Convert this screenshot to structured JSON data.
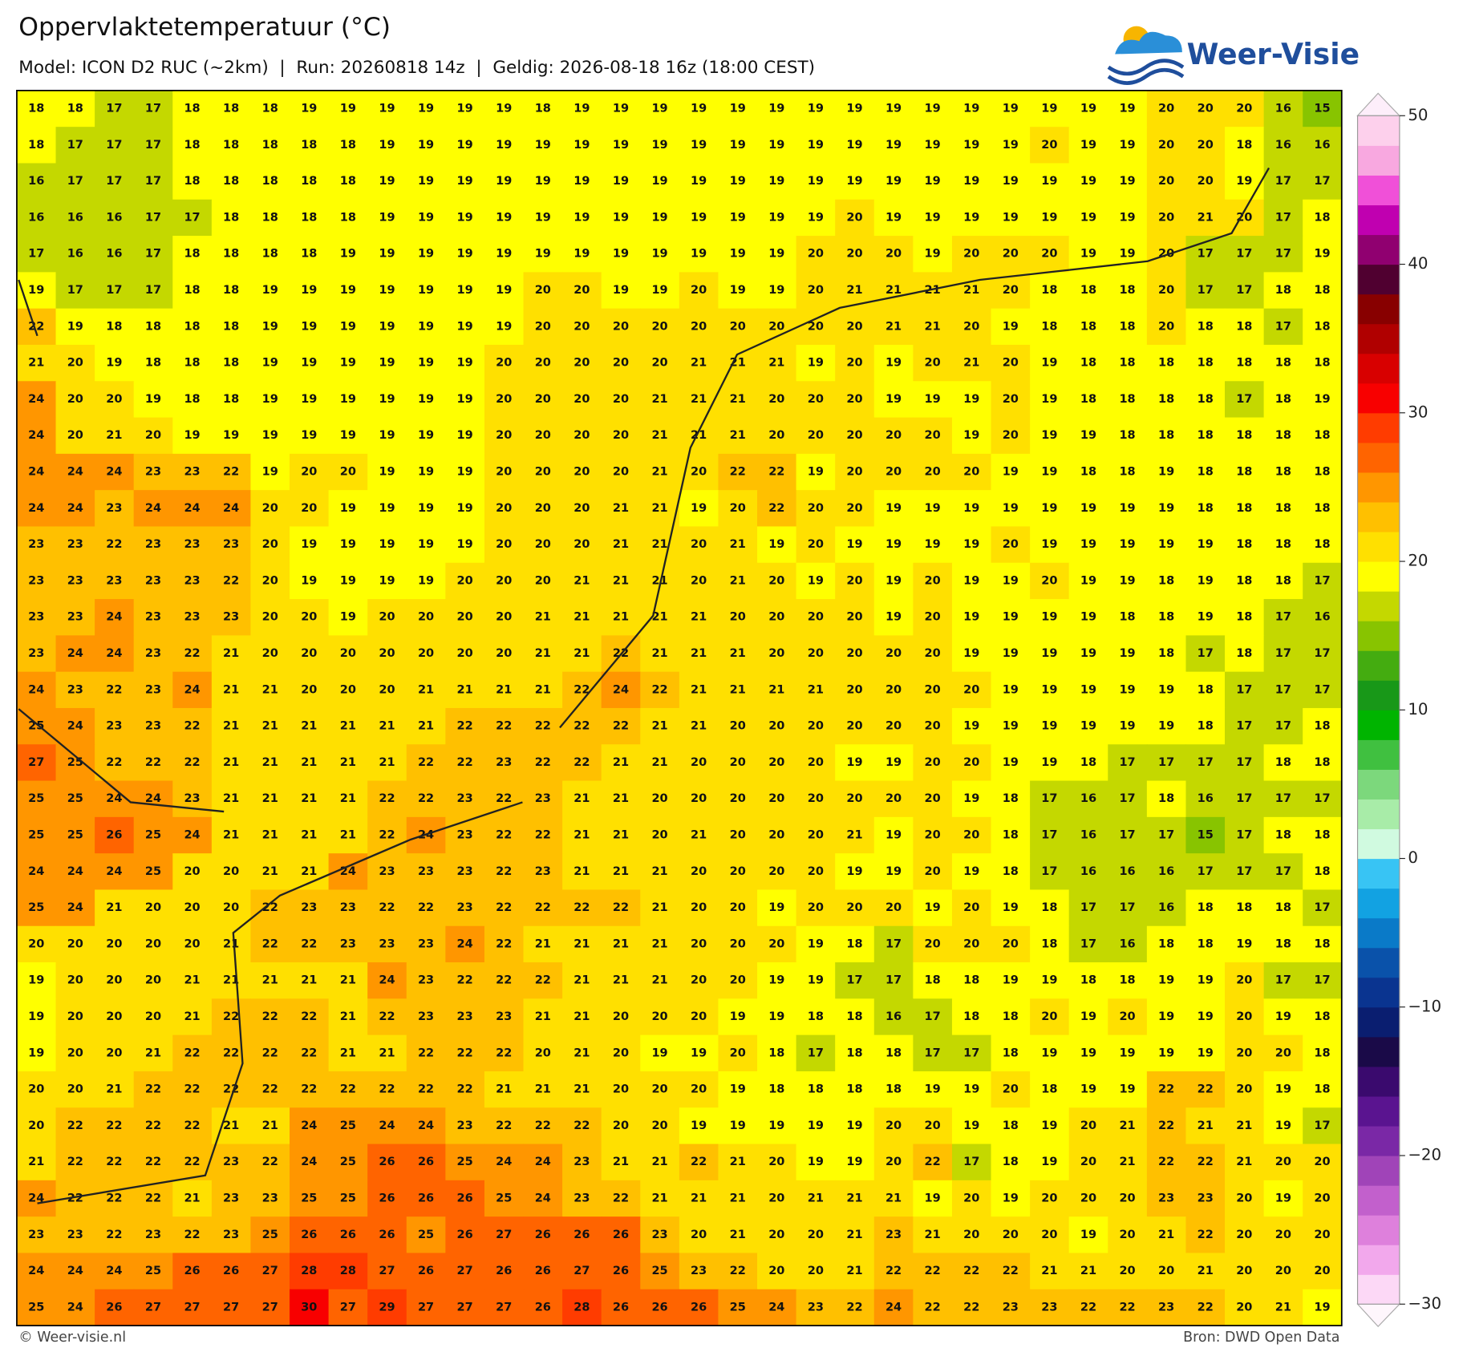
{
  "header": {
    "title": "Oppervlaktetemperatuur (°C)",
    "subtitle": "Model: ICON D2 RUC (~2km)  |  Run: 20260818 14z  |  Geldig: 2026-08-18 16z (18:00 CEST)"
  },
  "logo": "Weer-Visie",
  "map": {
    "grid": [
      [
        18,
        18,
        17,
        17,
        18,
        18,
        18,
        19,
        19,
        19,
        19,
        19,
        19,
        18,
        19,
        19,
        19,
        19,
        19,
        19,
        19,
        19,
        19,
        19,
        19,
        19,
        19,
        19,
        19,
        20,
        20,
        20,
        16,
        15
      ],
      [
        18,
        17,
        17,
        17,
        18,
        18,
        18,
        18,
        18,
        19,
        19,
        19,
        19,
        19,
        19,
        19,
        19,
        19,
        19,
        19,
        19,
        19,
        19,
        19,
        19,
        19,
        20,
        19,
        19,
        20,
        20,
        18,
        16,
        16
      ],
      [
        16,
        17,
        17,
        17,
        18,
        18,
        18,
        18,
        18,
        19,
        19,
        19,
        19,
        19,
        19,
        19,
        19,
        19,
        19,
        19,
        19,
        19,
        19,
        19,
        19,
        19,
        19,
        19,
        19,
        20,
        20,
        19,
        17,
        17
      ],
      [
        16,
        16,
        16,
        17,
        17,
        18,
        18,
        18,
        18,
        19,
        19,
        19,
        19,
        19,
        19,
        19,
        19,
        19,
        19,
        19,
        19,
        20,
        19,
        19,
        19,
        19,
        19,
        19,
        19,
        20,
        21,
        20,
        17,
        18
      ],
      [
        17,
        16,
        16,
        17,
        18,
        18,
        18,
        18,
        19,
        19,
        19,
        19,
        19,
        19,
        19,
        19,
        19,
        19,
        19,
        19,
        20,
        20,
        20,
        19,
        20,
        20,
        20,
        19,
        19,
        20,
        17,
        17,
        17,
        19
      ],
      [
        19,
        17,
        17,
        17,
        18,
        18,
        19,
        19,
        19,
        19,
        19,
        19,
        19,
        20,
        20,
        19,
        19,
        20,
        19,
        19,
        20,
        21,
        21,
        21,
        21,
        20,
        18,
        18,
        18,
        20,
        17,
        17,
        18,
        18
      ],
      [
        22,
        19,
        18,
        18,
        18,
        18,
        19,
        19,
        19,
        19,
        19,
        19,
        19,
        20,
        20,
        20,
        20,
        20,
        20,
        20,
        20,
        20,
        21,
        21,
        20,
        19,
        18,
        18,
        18,
        20,
        18,
        18,
        17,
        18
      ],
      [
        21,
        20,
        19,
        18,
        18,
        18,
        19,
        19,
        19,
        19,
        19,
        19,
        20,
        20,
        20,
        20,
        20,
        21,
        21,
        21,
        19,
        20,
        19,
        20,
        21,
        20,
        19,
        18,
        18,
        18,
        18,
        18,
        18,
        18
      ],
      [
        24,
        20,
        20,
        19,
        18,
        18,
        19,
        19,
        19,
        19,
        19,
        19,
        20,
        20,
        20,
        20,
        21,
        21,
        21,
        20,
        20,
        20,
        19,
        19,
        19,
        20,
        19,
        18,
        18,
        18,
        18,
        17,
        18,
        19
      ],
      [
        24,
        20,
        21,
        20,
        19,
        19,
        19,
        19,
        19,
        19,
        19,
        19,
        20,
        20,
        20,
        20,
        21,
        21,
        21,
        20,
        20,
        20,
        20,
        20,
        19,
        20,
        19,
        19,
        18,
        18,
        18,
        18,
        18,
        18
      ],
      [
        24,
        24,
        24,
        23,
        23,
        22,
        19,
        20,
        20,
        19,
        19,
        19,
        20,
        20,
        20,
        20,
        21,
        20,
        22,
        22,
        19,
        20,
        20,
        20,
        20,
        19,
        19,
        18,
        18,
        19,
        18,
        18,
        18,
        18
      ],
      [
        24,
        24,
        23,
        24,
        24,
        24,
        20,
        20,
        19,
        19,
        19,
        19,
        20,
        20,
        20,
        21,
        21,
        19,
        20,
        22,
        20,
        20,
        19,
        19,
        19,
        19,
        19,
        19,
        19,
        19,
        18,
        18,
        18,
        18
      ],
      [
        23,
        23,
        22,
        23,
        23,
        23,
        20,
        19,
        19,
        19,
        19,
        19,
        20,
        20,
        20,
        21,
        21,
        20,
        21,
        19,
        20,
        19,
        19,
        19,
        19,
        20,
        19,
        19,
        19,
        19,
        19,
        18,
        18,
        18
      ],
      [
        23,
        23,
        23,
        23,
        23,
        22,
        20,
        19,
        19,
        19,
        19,
        20,
        20,
        20,
        21,
        21,
        21,
        20,
        21,
        20,
        19,
        20,
        19,
        20,
        19,
        19,
        20,
        19,
        19,
        18,
        19,
        18,
        18,
        17
      ],
      [
        23,
        23,
        24,
        23,
        23,
        23,
        20,
        20,
        19,
        20,
        20,
        20,
        20,
        21,
        21,
        21,
        21,
        21,
        20,
        20,
        20,
        20,
        19,
        20,
        19,
        19,
        19,
        19,
        18,
        18,
        19,
        18,
        17,
        16
      ],
      [
        23,
        24,
        24,
        23,
        22,
        21,
        20,
        20,
        20,
        20,
        20,
        20,
        20,
        21,
        21,
        22,
        21,
        21,
        21,
        20,
        20,
        20,
        20,
        20,
        19,
        19,
        19,
        19,
        19,
        18,
        17,
        18,
        17,
        17
      ],
      [
        24,
        23,
        22,
        23,
        24,
        21,
        21,
        20,
        20,
        20,
        21,
        21,
        21,
        21,
        22,
        24,
        22,
        21,
        21,
        21,
        21,
        20,
        20,
        20,
        20,
        19,
        19,
        19,
        19,
        19,
        18,
        17,
        17,
        17
      ],
      [
        25,
        24,
        23,
        23,
        22,
        21,
        21,
        21,
        21,
        21,
        21,
        22,
        22,
        22,
        22,
        22,
        21,
        21,
        20,
        20,
        20,
        20,
        20,
        20,
        19,
        19,
        19,
        19,
        19,
        19,
        18,
        17,
        17,
        18
      ],
      [
        27,
        25,
        22,
        22,
        22,
        21,
        21,
        21,
        21,
        21,
        22,
        22,
        23,
        22,
        22,
        21,
        21,
        20,
        20,
        20,
        20,
        19,
        19,
        20,
        20,
        19,
        19,
        18,
        17,
        17,
        17,
        17,
        18,
        18
      ],
      [
        25,
        25,
        24,
        24,
        23,
        21,
        21,
        21,
        21,
        22,
        22,
        23,
        22,
        23,
        21,
        21,
        20,
        20,
        20,
        20,
        20,
        20,
        20,
        20,
        19,
        18,
        17,
        16,
        17,
        18,
        16,
        17,
        17,
        17
      ],
      [
        25,
        25,
        26,
        25,
        24,
        21,
        21,
        21,
        21,
        22,
        24,
        23,
        22,
        22,
        21,
        21,
        20,
        21,
        20,
        20,
        20,
        21,
        19,
        20,
        20,
        18,
        17,
        16,
        17,
        17,
        15,
        17,
        18,
        18
      ],
      [
        24,
        24,
        24,
        25,
        20,
        20,
        21,
        21,
        24,
        23,
        23,
        23,
        22,
        23,
        21,
        21,
        21,
        20,
        20,
        20,
        20,
        19,
        19,
        20,
        19,
        18,
        17,
        16,
        16,
        16,
        17,
        17,
        17,
        18
      ],
      [
        25,
        24,
        21,
        20,
        20,
        20,
        22,
        23,
        23,
        22,
        22,
        23,
        22,
        22,
        22,
        22,
        21,
        20,
        20,
        19,
        20,
        20,
        20,
        19,
        20,
        19,
        18,
        17,
        17,
        16,
        18,
        18,
        18,
        17
      ],
      [
        20,
        20,
        20,
        20,
        20,
        21,
        22,
        22,
        23,
        23,
        23,
        24,
        22,
        21,
        21,
        21,
        21,
        20,
        20,
        20,
        19,
        18,
        17,
        20,
        20,
        20,
        18,
        17,
        16,
        18,
        18,
        19,
        18,
        18
      ],
      [
        19,
        20,
        20,
        20,
        21,
        21,
        21,
        21,
        21,
        24,
        23,
        22,
        22,
        22,
        21,
        21,
        21,
        20,
        20,
        19,
        19,
        17,
        17,
        18,
        18,
        19,
        19,
        18,
        18,
        19,
        19,
        20,
        17,
        17
      ],
      [
        19,
        20,
        20,
        20,
        21,
        22,
        22,
        22,
        21,
        22,
        23,
        23,
        23,
        21,
        21,
        20,
        20,
        20,
        19,
        19,
        18,
        18,
        16,
        17,
        18,
        18,
        20,
        19,
        20,
        19,
        19,
        20,
        19,
        18
      ],
      [
        19,
        20,
        20,
        21,
        22,
        22,
        22,
        22,
        21,
        21,
        22,
        22,
        22,
        20,
        21,
        20,
        19,
        19,
        20,
        18,
        17,
        18,
        18,
        17,
        17,
        18,
        19,
        19,
        19,
        19,
        19,
        20,
        20,
        18
      ],
      [
        20,
        20,
        21,
        22,
        22,
        22,
        22,
        22,
        22,
        22,
        22,
        22,
        21,
        21,
        21,
        20,
        20,
        20,
        19,
        18,
        18,
        18,
        18,
        19,
        19,
        20,
        18,
        19,
        19,
        22,
        22,
        20,
        19,
        18
      ],
      [
        20,
        22,
        22,
        22,
        22,
        21,
        21,
        24,
        25,
        24,
        24,
        23,
        22,
        22,
        22,
        20,
        20,
        19,
        19,
        19,
        19,
        19,
        20,
        20,
        19,
        18,
        19,
        20,
        21,
        22,
        21,
        21,
        19,
        17
      ],
      [
        21,
        22,
        22,
        22,
        22,
        23,
        22,
        24,
        25,
        26,
        26,
        25,
        24,
        24,
        23,
        21,
        21,
        22,
        21,
        20,
        19,
        19,
        20,
        22,
        17,
        18,
        19,
        20,
        21,
        22,
        22,
        21,
        20,
        20
      ],
      [
        24,
        22,
        22,
        22,
        21,
        23,
        23,
        25,
        25,
        26,
        26,
        26,
        25,
        24,
        23,
        22,
        21,
        21,
        21,
        20,
        21,
        21,
        21,
        19,
        20,
        19,
        20,
        20,
        20,
        23,
        23,
        20,
        19,
        20
      ],
      [
        23,
        23,
        22,
        23,
        22,
        23,
        25,
        26,
        26,
        26,
        25,
        26,
        27,
        26,
        26,
        26,
        23,
        20,
        21,
        20,
        20,
        21,
        23,
        21,
        20,
        20,
        20,
        19,
        20,
        21,
        22,
        20,
        20,
        20
      ],
      [
        24,
        24,
        24,
        25,
        26,
        26,
        27,
        28,
        28,
        27,
        26,
        27,
        26,
        26,
        27,
        26,
        25,
        23,
        22,
        20,
        20,
        21,
        22,
        22,
        22,
        22,
        21,
        21,
        20,
        20,
        21,
        20,
        20,
        20
      ],
      [
        25,
        24,
        26,
        27,
        27,
        27,
        27,
        30,
        27,
        29,
        27,
        27,
        27,
        26,
        28,
        26,
        26,
        26,
        25,
        24,
        23,
        22,
        24,
        22,
        22,
        23,
        23,
        22,
        22,
        23,
        22,
        20,
        21,
        19
      ]
    ]
  },
  "colorbar": {
    "clim": [
      -30,
      50
    ],
    "ticks": [
      50,
      40,
      30,
      20,
      10,
      0,
      {
        "value": -10,
        "label": "−10"
      },
      {
        "value": -20,
        "label": "−20"
      },
      {
        "value": -30,
        "label": "−30"
      }
    ],
    "colors": [
      "#fcd8f6",
      "#f2a8ec",
      "#de80dc",
      "#c260cc",
      "#a044b8",
      "#7a28a6",
      "#5a1490",
      "#3a0a6e",
      "#1a0a48",
      "#0a1e70",
      "#0a3490",
      "#0a52aa",
      "#0a7ac8",
      "#12a2e2",
      "#38c4f4",
      "#d0fae0",
      "#a8eca8",
      "#7cd87c",
      "#40c040",
      "#00b400",
      "#189818",
      "#44ac10",
      "#88c400",
      "#c4d800",
      "#ffff00",
      "#ffe000",
      "#ffc000",
      "#ff9600",
      "#ff6400",
      "#ff3c00",
      "#f80000",
      "#d80000",
      "#b00000",
      "#880000",
      "#500030",
      "#900070",
      "#c000b0",
      "#f050d8",
      "#f8a8e0",
      "#fdd0ec"
    ]
  },
  "footer": {
    "left": "© Weer-visie.nl",
    "right": "Bron: DWD Open Data"
  }
}
